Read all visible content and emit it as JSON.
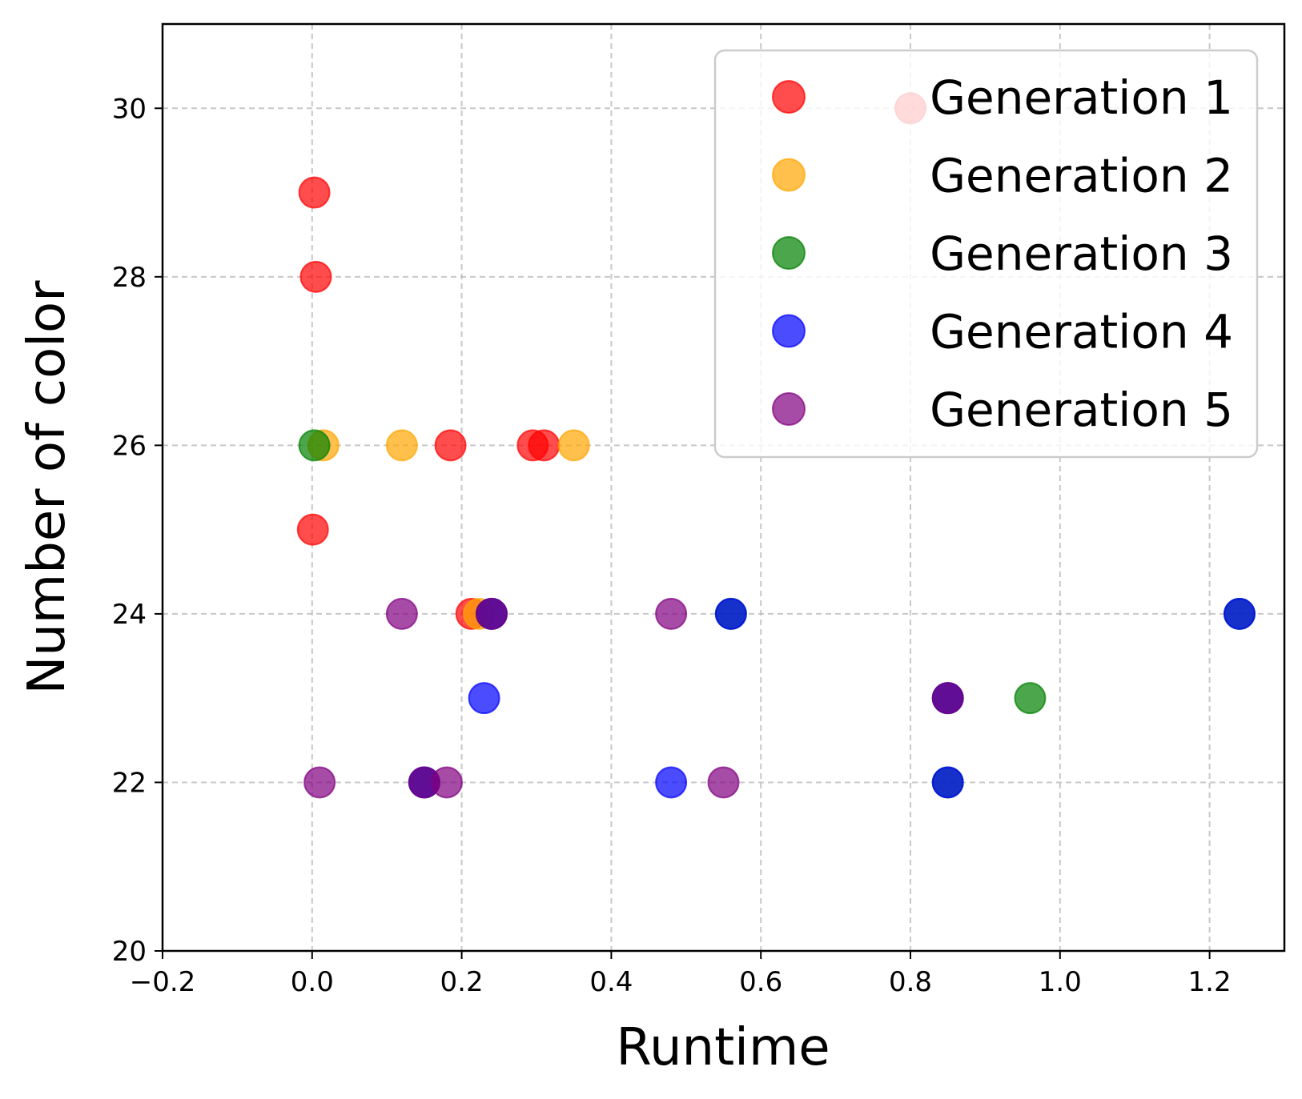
{
  "chart_data": {
    "type": "scatter",
    "xlabel": "Runtime",
    "ylabel": "Number of color",
    "xlim": [
      -0.2,
      1.3
    ],
    "ylim": [
      20,
      31
    ],
    "xticks": [
      "−0.2",
      "0.0",
      "0.2",
      "0.4",
      "0.6",
      "0.8",
      "1.0",
      "1.2"
    ],
    "xtick_values": [
      -0.2,
      0.0,
      0.2,
      0.4,
      0.6,
      0.8,
      1.0,
      1.2
    ],
    "yticks": [
      "20",
      "22",
      "24",
      "26",
      "28",
      "30"
    ],
    "ytick_values": [
      20,
      22,
      24,
      26,
      28,
      30
    ],
    "grid": true,
    "legend_position": "top-right",
    "series": [
      {
        "name": "Generation 1",
        "color": "#ff0000",
        "points": [
          [
            0.8,
            30
          ],
          [
            0.003,
            29
          ],
          [
            0.005,
            28
          ],
          [
            0.185,
            26
          ],
          [
            0.295,
            26
          ],
          [
            0.31,
            26
          ],
          [
            0.001,
            25
          ],
          [
            0.213,
            24
          ]
        ]
      },
      {
        "name": "Generation 2",
        "color": "#ffa500",
        "points": [
          [
            0.015,
            26
          ],
          [
            0.12,
            26
          ],
          [
            0.35,
            26
          ],
          [
            0.223,
            24
          ]
        ]
      },
      {
        "name": "Generation 3",
        "color": "#008000",
        "points": [
          [
            0.003,
            26
          ],
          [
            0.96,
            23
          ],
          [
            0.24,
            24
          ],
          [
            0.85,
            23
          ],
          [
            0.15,
            22
          ],
          [
            0.56,
            24
          ],
          [
            1.24,
            24
          ],
          [
            0.85,
            22
          ]
        ]
      },
      {
        "name": "Generation 4",
        "color": "#0000ff",
        "points": [
          [
            0.23,
            23
          ],
          [
            0.48,
            22
          ],
          [
            0.56,
            24
          ],
          [
            1.24,
            24
          ],
          [
            0.85,
            22
          ],
          [
            0.24,
            24
          ],
          [
            0.85,
            23
          ],
          [
            0.15,
            22
          ]
        ]
      },
      {
        "name": "Generation 5",
        "color": "#800080",
        "points": [
          [
            0.12,
            24
          ],
          [
            0.24,
            24
          ],
          [
            0.48,
            24
          ],
          [
            0.01,
            22
          ],
          [
            0.15,
            22
          ],
          [
            0.18,
            22
          ],
          [
            0.55,
            22
          ],
          [
            0.85,
            23
          ]
        ]
      }
    ]
  }
}
